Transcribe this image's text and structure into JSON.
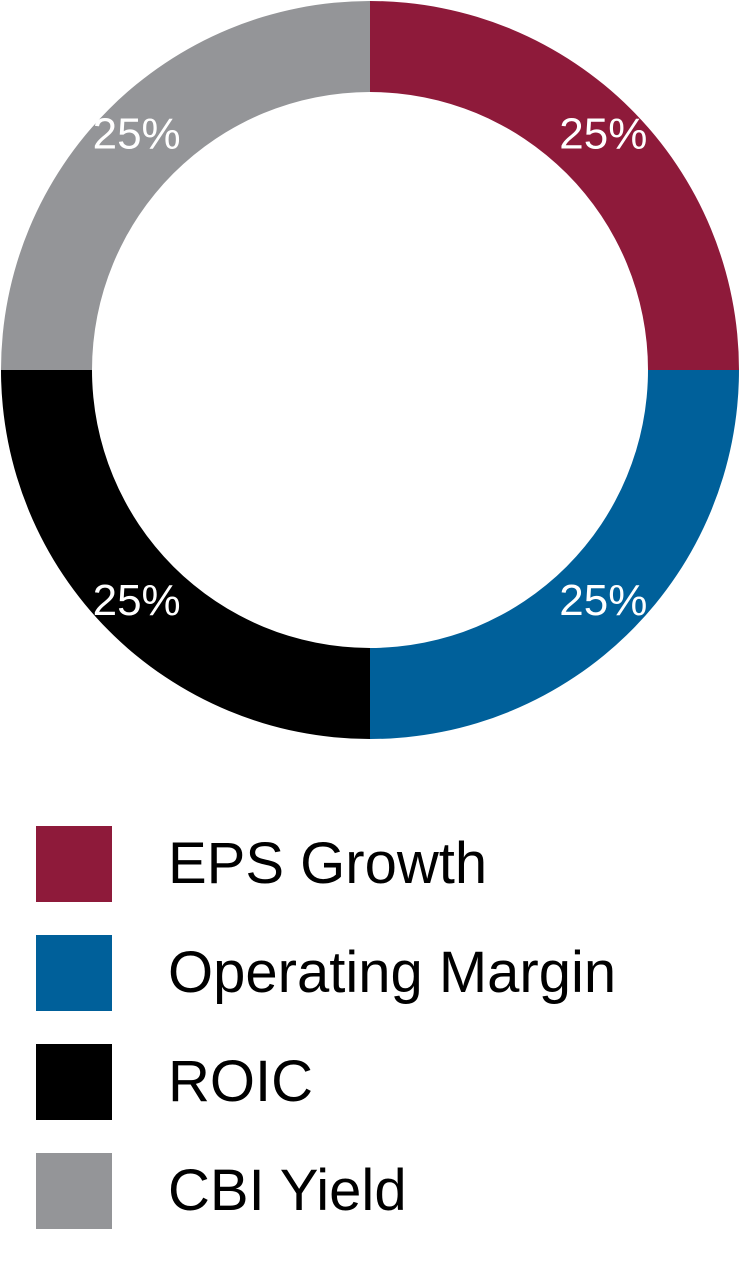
{
  "chart_data": {
    "type": "pie",
    "variant": "donut",
    "title": "",
    "series": [
      {
        "categories": [
          "EPS Growth",
          "Operating Margin",
          "ROIC",
          "CBI Yield"
        ],
        "values": [
          25,
          25,
          25,
          25
        ],
        "labels": [
          "25%",
          "25%",
          "25%",
          "25%"
        ],
        "colors": [
          "#8e1a3a",
          "#00609a",
          "#000000",
          "#949598"
        ]
      }
    ],
    "legend_placement": "bottom"
  },
  "legend": {
    "items": [
      {
        "label": "EPS Growth",
        "color": "#8e1a3a"
      },
      {
        "label": "Operating Margin",
        "color": "#00609a"
      },
      {
        "label": "ROIC",
        "color": "#000000"
      },
      {
        "label": "CBI Yield",
        "color": "#949598"
      }
    ]
  }
}
